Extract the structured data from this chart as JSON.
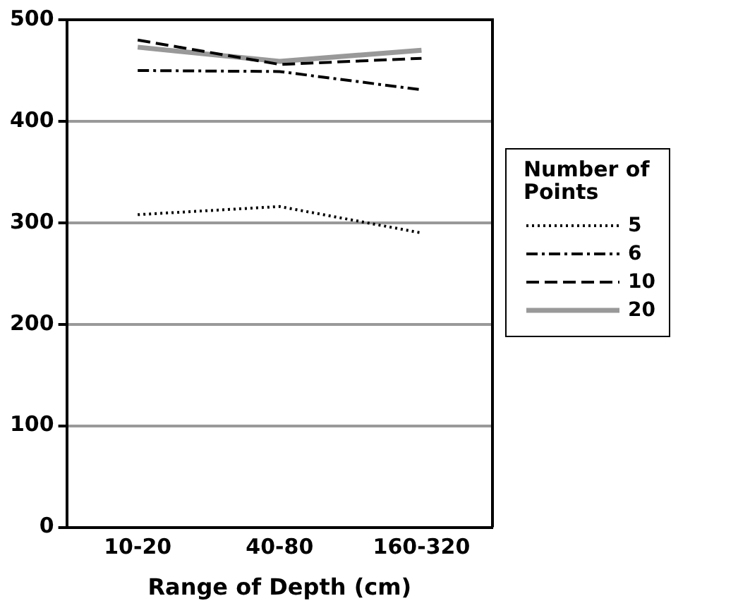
{
  "chart_data": {
    "type": "line",
    "xlabel": "Range of Depth (cm)",
    "legend_title": "Number of Points",
    "legend": "right",
    "grid": "y",
    "marker": "none",
    "categories": [
      "10-20",
      "40-80",
      "160-320"
    ],
    "ylim": [
      0,
      500
    ],
    "yticks": [
      0,
      100,
      200,
      300,
      400,
      500
    ],
    "series": [
      {
        "name": "5",
        "color": "#000000",
        "line_style": "dotted",
        "values": [
          308,
          316,
          290
        ]
      },
      {
        "name": "6",
        "color": "#000000",
        "line_style": "dashdot",
        "values": [
          450,
          449,
          431
        ]
      },
      {
        "name": "10",
        "color": "#000000",
        "line_style": "dashed",
        "values": [
          480,
          456,
          462
        ]
      },
      {
        "name": "20",
        "color": "#999999",
        "line_style": "solid",
        "values": [
          473,
          459,
          470
        ]
      }
    ]
  }
}
